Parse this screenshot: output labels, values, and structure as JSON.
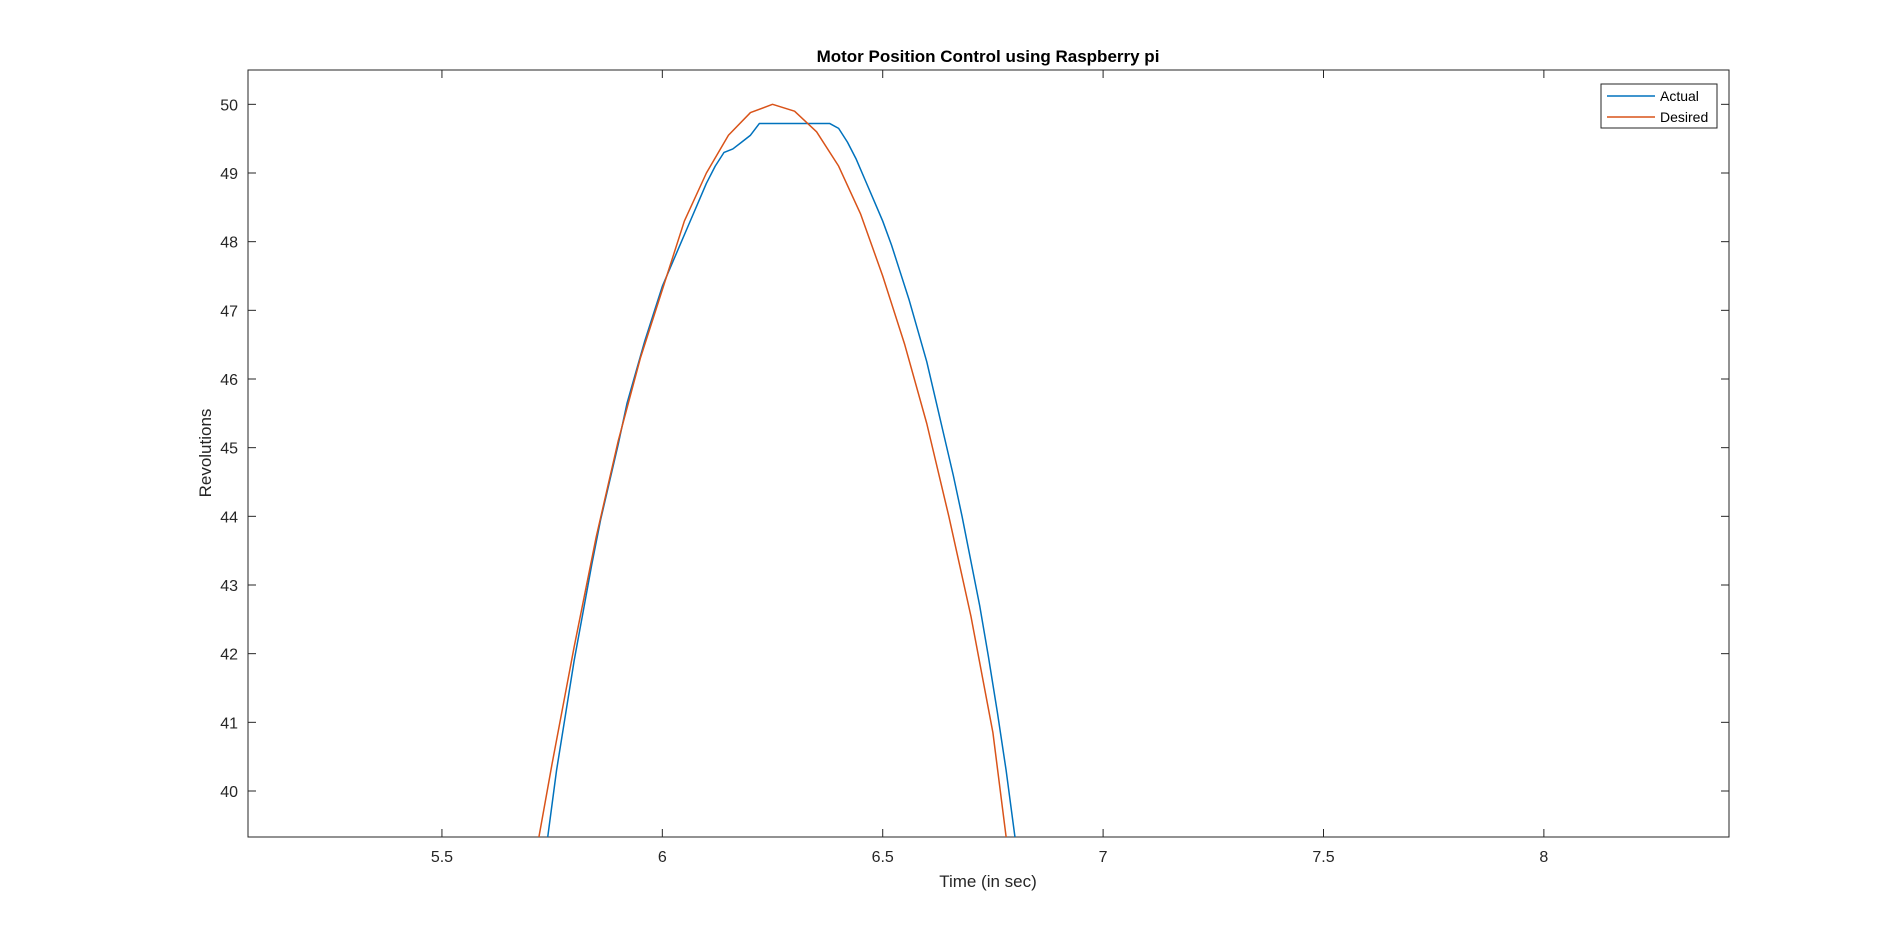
{
  "chart_data": {
    "type": "line",
    "title": "Motor Position Control using Raspberry pi",
    "xlabel": "Time (in sec)",
    "ylabel": "Revolutions",
    "xlim": [
      5.06,
      8.42
    ],
    "ylim": [
      39.33,
      50.5
    ],
    "xticks": [
      5.5,
      6,
      6.5,
      7,
      7.5,
      8
    ],
    "xtick_labels": [
      "5.5",
      "6",
      "6.5",
      "7",
      "7.5",
      "8"
    ],
    "yticks": [
      40,
      41,
      42,
      43,
      44,
      45,
      46,
      47,
      48,
      49,
      50
    ],
    "ytick_labels": [
      "40",
      "41",
      "42",
      "43",
      "44",
      "45",
      "46",
      "47",
      "48",
      "49",
      "50"
    ],
    "grid": false,
    "legend_position": "top-right",
    "series": [
      {
        "name": "Actual",
        "color": "#0072BD",
        "x": [
          5.74,
          5.76,
          5.78,
          5.8,
          5.82,
          5.84,
          5.86,
          5.88,
          5.9,
          5.92,
          5.94,
          5.96,
          5.98,
          6.0,
          6.02,
          6.04,
          6.06,
          6.08,
          6.1,
          6.12,
          6.14,
          6.16,
          6.18,
          6.2,
          6.22,
          6.25,
          6.3,
          6.35,
          6.38,
          6.4,
          6.42,
          6.44,
          6.46,
          6.48,
          6.5,
          6.52,
          6.54,
          6.56,
          6.58,
          6.6,
          6.62,
          6.64,
          6.66,
          6.68,
          6.7,
          6.72,
          6.74,
          6.76,
          6.78,
          6.8
        ],
        "y": [
          39.33,
          40.3,
          41.1,
          41.9,
          42.6,
          43.3,
          43.95,
          44.5,
          45.05,
          45.65,
          46.1,
          46.55,
          46.95,
          47.35,
          47.65,
          47.95,
          48.25,
          48.55,
          48.85,
          49.1,
          49.3,
          49.35,
          49.45,
          49.55,
          49.72,
          49.72,
          49.72,
          49.72,
          49.72,
          49.65,
          49.45,
          49.2,
          48.9,
          48.6,
          48.3,
          47.95,
          47.55,
          47.15,
          46.7,
          46.25,
          45.7,
          45.15,
          44.6,
          44.0,
          43.35,
          42.7,
          41.95,
          41.15,
          40.3,
          39.33
        ]
      },
      {
        "name": "Desired",
        "color": "#D95319",
        "x": [
          5.72,
          5.75,
          5.8,
          5.85,
          5.9,
          5.95,
          6.0,
          6.05,
          6.1,
          6.15,
          6.2,
          6.25,
          6.3,
          6.35,
          6.4,
          6.45,
          6.5,
          6.55,
          6.6,
          6.65,
          6.7,
          6.75,
          6.78
        ],
        "y": [
          39.33,
          40.4,
          42.1,
          43.7,
          45.1,
          46.3,
          47.3,
          48.3,
          49.0,
          49.55,
          49.88,
          50.0,
          49.9,
          49.6,
          49.1,
          48.4,
          47.5,
          46.5,
          45.35,
          44.0,
          42.55,
          40.85,
          39.33
        ]
      }
    ]
  }
}
